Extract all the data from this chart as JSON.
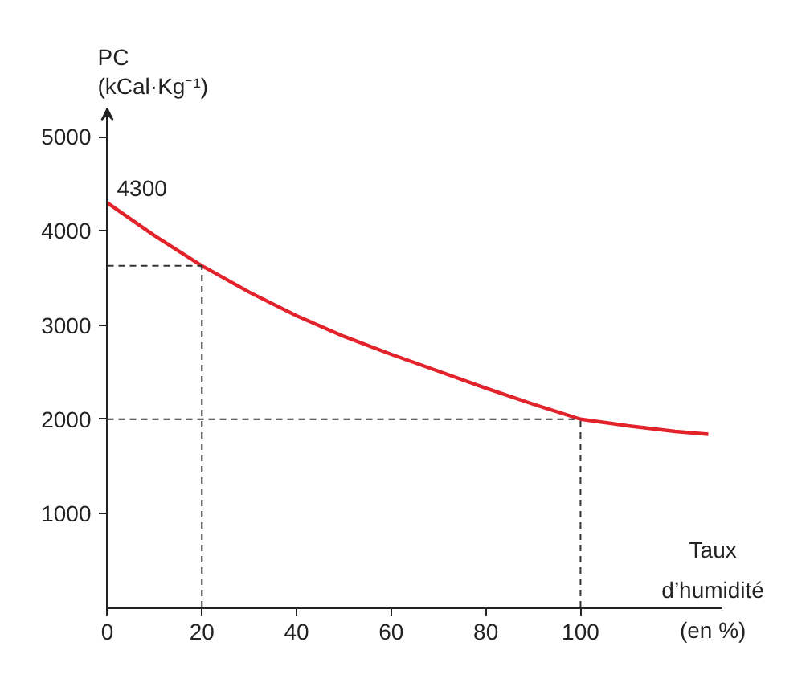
{
  "chart_data": {
    "type": "line",
    "ylabel": "PC\n(kCal·Kg⁻¹)",
    "xlabel": "Taux\nd’humidité\n(en %)",
    "x": [
      0,
      10,
      20,
      30,
      40,
      50,
      60,
      70,
      80,
      90,
      100,
      110,
      120,
      127
    ],
    "series": [
      {
        "color": "#e3232b",
        "values": [
          4300,
          3950,
          3630,
          3350,
          3100,
          2880,
          2690,
          2510,
          2330,
          2160,
          2000,
          1930,
          1870,
          1840
        ]
      }
    ],
    "xlim": [
      0,
      130
    ],
    "ylim": [
      0,
      5300
    ],
    "xticks": [
      0,
      20,
      40,
      60,
      80,
      100
    ],
    "yticks": [
      1000,
      2000,
      3000,
      4000,
      5000
    ],
    "ref_lines": [
      {
        "axis": "x",
        "value": 20,
        "line_style": "dashed",
        "color": "#333333"
      },
      {
        "axis": "y",
        "value": 3630,
        "line_style": "dashed",
        "color": "#333333"
      },
      {
        "axis": "x",
        "value": 100,
        "line_style": "dashed",
        "color": "#333333"
      },
      {
        "axis": "y",
        "value": 2000,
        "line_style": "dashed",
        "color": "#333333"
      }
    ],
    "annotations": [
      {
        "text": "4300",
        "x": 0,
        "y": 4300
      }
    ],
    "grid": false,
    "marker": "none",
    "line_style": "solid"
  }
}
